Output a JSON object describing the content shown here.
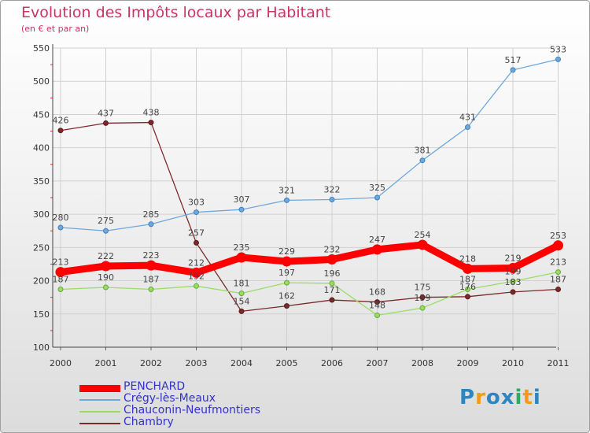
{
  "chart_data": {
    "type": "line",
    "title": "Evolution des Impôts locaux par Habitant",
    "subtitle": "(en € et par an)",
    "x": [
      "2000",
      "2001",
      "2002",
      "2003",
      "2004",
      "2005",
      "2006",
      "2007",
      "2008",
      "2009",
      "2010",
      "2011"
    ],
    "ylim": [
      100,
      550
    ],
    "yticks": [
      "100",
      "150",
      "200",
      "250",
      "300",
      "350",
      "400",
      "450",
      "500",
      "550"
    ],
    "grid": true,
    "series": [
      {
        "name": "PENCHARD",
        "color": "#ff0000",
        "values": [
          213,
          222,
          223,
          212,
          235,
          229,
          232,
          247,
          254,
          218,
          219,
          253
        ],
        "labels": [
          "213",
          "222",
          "223",
          "212",
          "235",
          "229",
          "232",
          "247",
          "254",
          "218",
          "219",
          "253"
        ]
      },
      {
        "name": "Crégy-lès-Meaux",
        "color": "#6fa8dc",
        "values": [
          280,
          275,
          285,
          303,
          307,
          321,
          322,
          325,
          381,
          431,
          517,
          533
        ],
        "labels": [
          "280",
          "275",
          "285",
          "303",
          "307",
          "321",
          "322",
          "325",
          "381",
          "431",
          "517",
          "533"
        ]
      },
      {
        "name": "Chauconin-Neufmontiers",
        "color": "#99dd66",
        "values": [
          187,
          190,
          187,
          192,
          181,
          197,
          196,
          148,
          159,
          187,
          199,
          213
        ],
        "labels": [
          "187",
          "190",
          "187",
          "192",
          "181",
          "197",
          "196",
          "148",
          "159",
          "187",
          "199",
          "213"
        ]
      },
      {
        "name": "Chambry",
        "color": "#7a2a2a",
        "values": [
          426,
          437,
          438,
          257,
          154,
          162,
          171,
          168,
          175,
          176,
          183,
          187
        ],
        "labels": [
          "426",
          "437",
          "438",
          "257",
          "154",
          "162",
          "171",
          "168",
          "175",
          "176",
          "183",
          "187"
        ]
      }
    ]
  },
  "logo": {
    "text": "Proxiti",
    "letters": [
      "P",
      "r",
      "o",
      "x",
      "i",
      "t",
      "i"
    ],
    "colors": [
      "#2e86c1",
      "#f39c12",
      "#2e86c1",
      "#2e86c1",
      "#27ae60",
      "#f39c12",
      "#2e86c1"
    ]
  }
}
